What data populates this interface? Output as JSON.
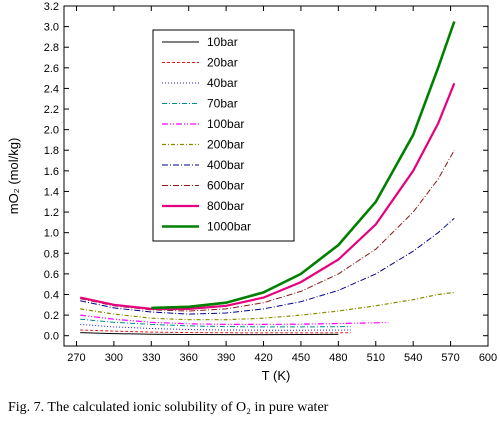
{
  "caption": "Fig. 7.  The calculated ionic solubility of O₂ in pure water",
  "chart_data": {
    "type": "line",
    "title": "",
    "xlabel": "T (K)",
    "ylabel": "mO₂ (mol/kg)",
    "xlim": [
      260,
      600
    ],
    "ylim": [
      -0.1,
      3.2
    ],
    "xticks": [
      270,
      300,
      330,
      360,
      390,
      420,
      450,
      480,
      510,
      540,
      570,
      600
    ],
    "yticks": [
      0.0,
      0.2,
      0.4,
      0.6,
      0.8,
      1.0,
      1.2,
      1.4,
      1.6,
      1.8,
      2.0,
      2.2,
      2.4,
      2.6,
      2.8,
      3.0,
      3.2
    ],
    "grid": false,
    "legend_position": "top-left",
    "series": [
      {
        "name": "10bar",
        "color": "#000000",
        "dash": "",
        "width": 1,
        "x": [
          273,
          300,
          330,
          360,
          390,
          420,
          450,
          480
        ],
        "y": [
          0.03,
          0.02,
          0.015,
          0.012,
          0.011,
          0.011,
          0.012,
          0.013
        ]
      },
      {
        "name": "20bar",
        "color": "#e41a1c",
        "dash": "3,2",
        "width": 1,
        "x": [
          273,
          300,
          330,
          360,
          390,
          420,
          450,
          480,
          490
        ],
        "y": [
          0.055,
          0.045,
          0.035,
          0.03,
          0.028,
          0.027,
          0.027,
          0.028,
          0.028
        ]
      },
      {
        "name": "40bar",
        "color": "#1f1fcc",
        "dash": "1,2",
        "width": 1,
        "x": [
          273,
          300,
          330,
          360,
          390,
          420,
          450,
          480,
          490
        ],
        "y": [
          0.11,
          0.085,
          0.07,
          0.06,
          0.055,
          0.053,
          0.053,
          0.054,
          0.055
        ]
      },
      {
        "name": "70bar",
        "color": "#008b8b",
        "dash": "5,2,1,2",
        "width": 1,
        "x": [
          273,
          300,
          330,
          360,
          390,
          420,
          450,
          480,
          490
        ],
        "y": [
          0.16,
          0.13,
          0.11,
          0.095,
          0.088,
          0.085,
          0.085,
          0.087,
          0.088
        ]
      },
      {
        "name": "100bar",
        "color": "#ff00ff",
        "dash": "6,2,1,2,1,2",
        "width": 1.2,
        "x": [
          273,
          300,
          330,
          360,
          390,
          420,
          450,
          480,
          510,
          520
        ],
        "y": [
          0.2,
          0.16,
          0.13,
          0.115,
          0.11,
          0.11,
          0.112,
          0.118,
          0.125,
          0.128
        ]
      },
      {
        "name": "200bar",
        "color": "#8b8b00",
        "dash": "4,2,1,2",
        "width": 1.2,
        "x": [
          273,
          300,
          330,
          360,
          390,
          420,
          450,
          480,
          510,
          540,
          560,
          573
        ],
        "y": [
          0.26,
          0.21,
          0.17,
          0.155,
          0.155,
          0.17,
          0.2,
          0.24,
          0.29,
          0.35,
          0.4,
          0.42
        ]
      },
      {
        "name": "400bar",
        "color": "#00008b",
        "dash": "6,2,1,2",
        "width": 1,
        "x": [
          273,
          300,
          330,
          360,
          390,
          420,
          450,
          480,
          510,
          540,
          560,
          573
        ],
        "y": [
          0.34,
          0.27,
          0.23,
          0.21,
          0.22,
          0.26,
          0.33,
          0.44,
          0.6,
          0.82,
          1.0,
          1.14
        ]
      },
      {
        "name": "600bar",
        "color": "#8b1a1a",
        "dash": "6,2,1,2",
        "width": 1,
        "x": [
          273,
          300,
          330,
          360,
          390,
          420,
          450,
          480,
          510,
          540,
          560,
          573
        ],
        "y": [
          0.36,
          0.29,
          0.25,
          0.24,
          0.26,
          0.32,
          0.43,
          0.6,
          0.84,
          1.2,
          1.52,
          1.8
        ]
      },
      {
        "name": "800bar",
        "color": "#e6007e",
        "dash": "",
        "width": 2.2,
        "x": [
          273,
          300,
          330,
          360,
          390,
          420,
          450,
          480,
          510,
          540,
          560,
          573
        ],
        "y": [
          0.37,
          0.3,
          0.26,
          0.26,
          0.29,
          0.37,
          0.52,
          0.74,
          1.08,
          1.6,
          2.06,
          2.45
        ]
      },
      {
        "name": "1000bar",
        "color": "#008000",
        "dash": "",
        "width": 2.6,
        "x": [
          330,
          360,
          390,
          420,
          450,
          480,
          510,
          540,
          560,
          573
        ],
        "y": [
          0.27,
          0.28,
          0.32,
          0.42,
          0.6,
          0.88,
          1.3,
          1.95,
          2.6,
          3.05
        ]
      }
    ]
  }
}
